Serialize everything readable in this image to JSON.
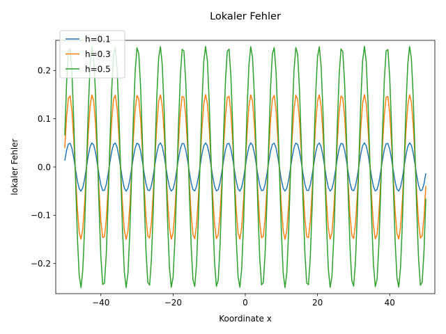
{
  "chart_data": {
    "type": "line",
    "title": "Lokaler Fehler",
    "xlabel": "Koordinate x",
    "ylabel": "lokaler Fehler",
    "xlim": [
      -52.5,
      52.5
    ],
    "ylim": [
      -0.2625,
      0.2625
    ],
    "x_range": [
      -50,
      50
    ],
    "x_step": 0.5,
    "xticks": [
      -40,
      -20,
      0,
      20,
      40
    ],
    "yticks": [
      -0.2,
      -0.1,
      0.0,
      0.1,
      0.2
    ],
    "xtick_labels": [
      "−40",
      "−20",
      "0",
      "20",
      "40"
    ],
    "ytick_labels": [
      "−0.2",
      "−0.1",
      "0.0",
      "0.1",
      "0.2"
    ],
    "grid": false,
    "legend_position": "top-left",
    "function": "y = h/2 · sin(x)",
    "series": [
      {
        "name": "h=0.1",
        "h": 0.1,
        "amplitude": 0.05,
        "color": "#1f77b4"
      },
      {
        "name": "h=0.3",
        "h": 0.3,
        "amplitude": 0.15,
        "color": "#ff7f0e"
      },
      {
        "name": "h=0.5",
        "h": 0.5,
        "amplitude": 0.25,
        "color": "#2ca02c"
      }
    ]
  }
}
